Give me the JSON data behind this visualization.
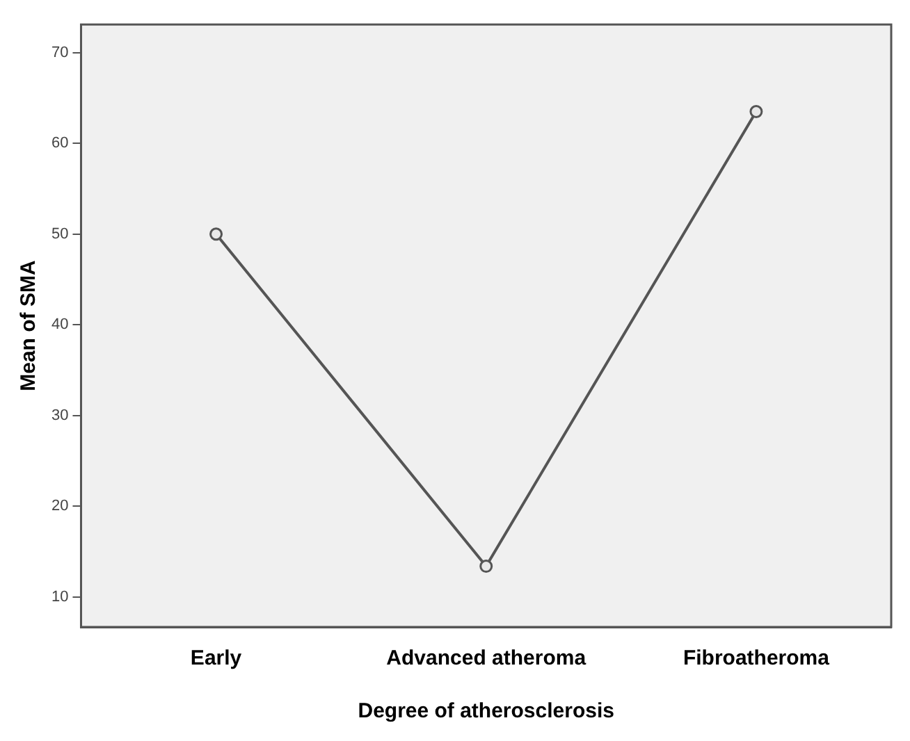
{
  "chart_data": {
    "type": "line",
    "xlabel": "Degree of atherosclerosis",
    "ylabel": "Mean of SMA",
    "categories": [
      "Early",
      "Advanced atheroma",
      "Fibroatheroma"
    ],
    "series": [
      {
        "color": "#555555",
        "values": [
          50,
          13.4,
          63.5
        ]
      }
    ],
    "ylim": [
      6.7,
      73.1
    ],
    "yticks": [
      10,
      20,
      30,
      40,
      50,
      60,
      70
    ],
    "grid": false,
    "legend": false,
    "marker": "circle",
    "line_style": "solid"
  }
}
